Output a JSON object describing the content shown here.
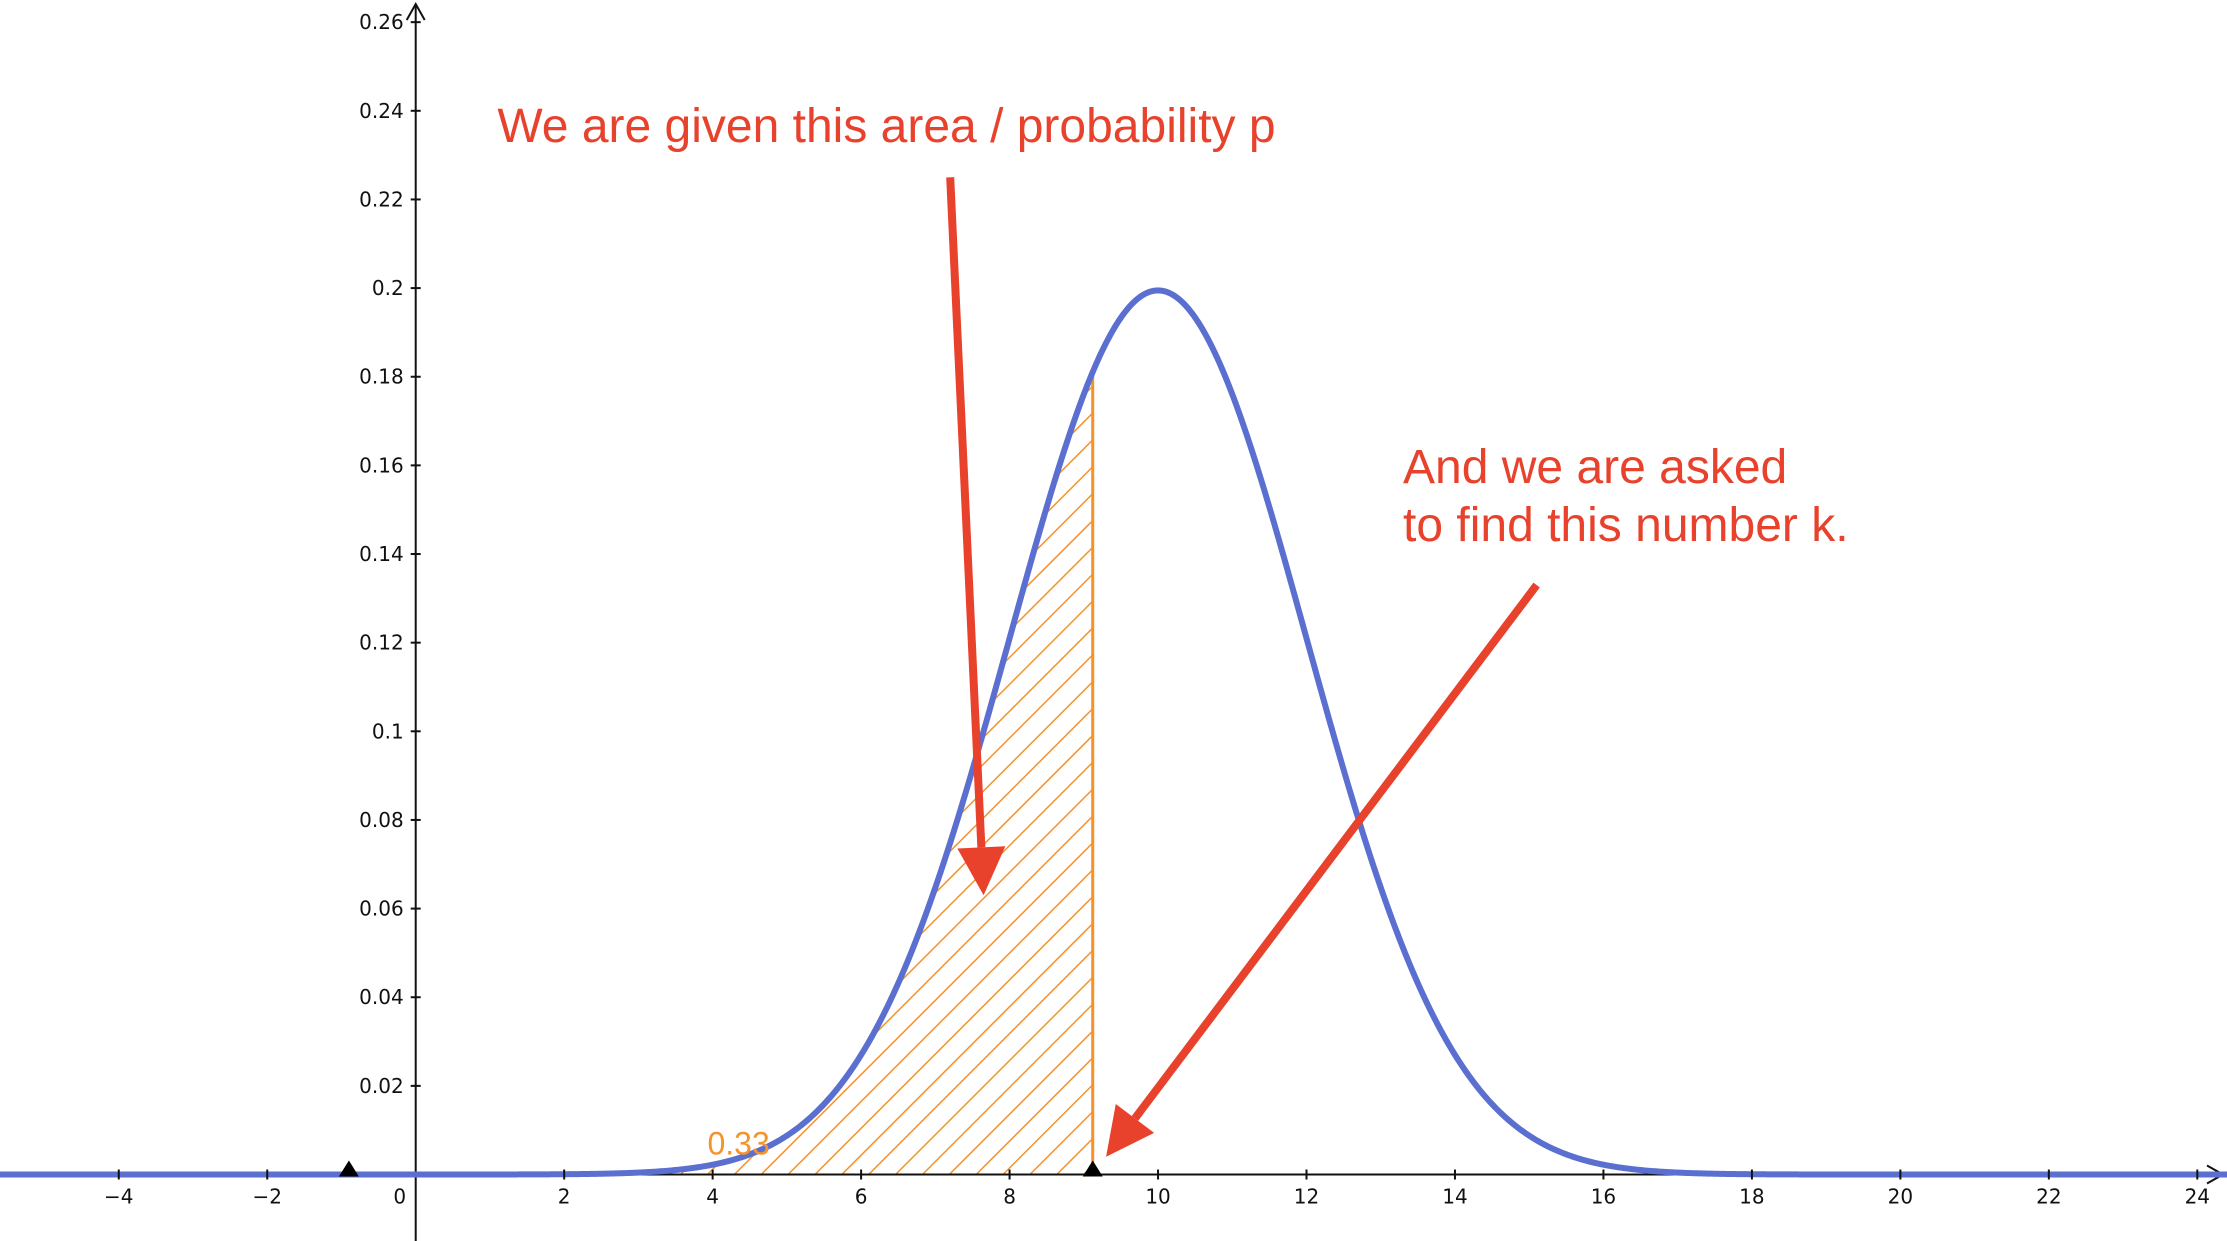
{
  "chart_data": {
    "type": "line",
    "title": "",
    "xlabel": "",
    "ylabel": "",
    "xlim": [
      -5.6,
      24.4
    ],
    "ylim": [
      -0.015,
      0.265
    ],
    "x_ticks": [
      -4,
      -2,
      0,
      2,
      4,
      6,
      8,
      10,
      12,
      14,
      16,
      18,
      20,
      22,
      24
    ],
    "x_tick_labels": [
      "−4",
      "−2",
      "0",
      "2",
      "4",
      "6",
      "8",
      "10",
      "12",
      "14",
      "16",
      "18",
      "20",
      "22",
      "24"
    ],
    "y_ticks": [
      0.02,
      0.04,
      0.06,
      0.08,
      0.1,
      0.12,
      0.14,
      0.16,
      0.18,
      0.2,
      0.22,
      0.24,
      0.26
    ],
    "y_tick_labels": [
      "0.02",
      "0.04",
      "0.06",
      "0.08",
      "0.1",
      "0.12",
      "0.14",
      "0.16",
      "0.18",
      "0.2",
      "0.22",
      "0.24",
      "0.26"
    ],
    "grid": false,
    "curve": {
      "distribution": "normal",
      "mean": 10,
      "sd": 2,
      "x_from": -5.6,
      "x_to": 24.4,
      "color": "#5a6fcf"
    },
    "shaded_region": {
      "x_from": -5.6,
      "x_to": 9.12,
      "label": "0.33",
      "label_x": 4.35,
      "label_y": 0.0045,
      "color": "#f5922a",
      "fill": "hatched"
    },
    "points": [
      {
        "x": -0.9,
        "y": 0
      },
      {
        "x": 9.12,
        "y": 0
      }
    ],
    "annotations": [
      {
        "lines": [
          "We are given this area / probability p"
        ],
        "x": 1.1,
        "y": 0.233,
        "arrow_from": [
          7.2,
          0.225
        ],
        "arrow_to": [
          7.65,
          0.063
        ],
        "color": "#e8412c"
      },
      {
        "lines": [
          "And we are asked",
          "to find this number k."
        ],
        "x": 13.3,
        "y": 0.156,
        "arrow_from": [
          15.1,
          0.133
        ],
        "arrow_to": [
          9.3,
          0.004
        ],
        "color": "#e8412c"
      }
    ]
  }
}
